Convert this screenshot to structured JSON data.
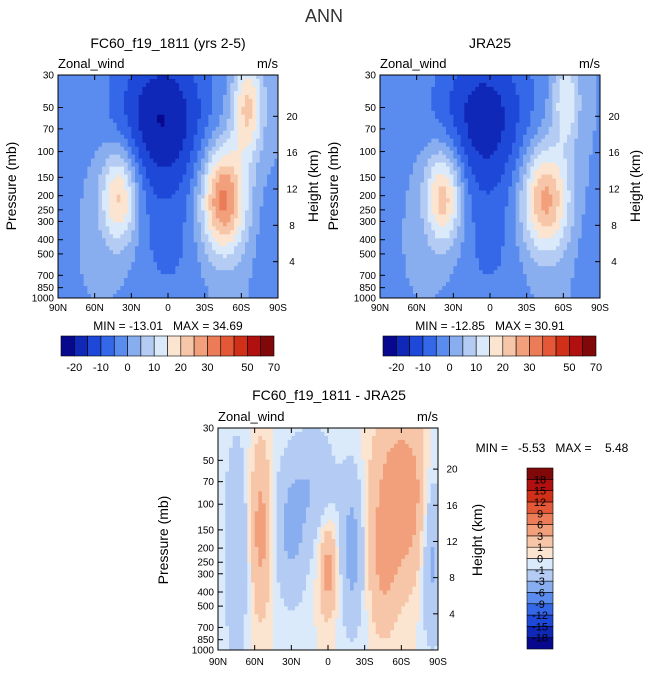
{
  "figure": {
    "title": "ANN"
  },
  "chart_data": [
    {
      "id": "model",
      "type": "heatmap",
      "title": "FC60_f19_1811 (yrs 2-5)",
      "left_label": "Zonal_wind",
      "right_label": "m/s",
      "ylabel": "Pressure (mb)",
      "ylabel_right": "Height (km)",
      "x_ticks": [
        "90N",
        "60N",
        "30N",
        "0",
        "30S",
        "60S",
        "90S"
      ],
      "x_values": [
        90,
        60,
        30,
        0,
        -30,
        -60,
        -90
      ],
      "y_ticks": [
        "30",
        "50",
        "70",
        "100",
        "150",
        "200",
        "250",
        "300",
        "400",
        "500",
        "700",
        "850",
        "1000"
      ],
      "y_values": [
        30,
        50,
        70,
        100,
        150,
        200,
        250,
        300,
        400,
        500,
        700,
        850,
        1000
      ],
      "height_ticks": [
        "4",
        "8",
        "12",
        "16",
        "20"
      ],
      "height_values": [
        4,
        8,
        12,
        16,
        20
      ],
      "ylim": [
        30,
        1000
      ],
      "stats_text": "MIN = -13.01   MAX = 34.69",
      "min": -13.01,
      "max": 34.69,
      "features": [
        {
          "lat": 40,
          "p": 200,
          "amp": 24,
          "sx": 11,
          "sy": 0.55,
          "pt": 1.8
        },
        {
          "lat": -45,
          "p": 210,
          "amp": 33,
          "sx": 13,
          "sy": 0.6,
          "pt": 1.8
        },
        {
          "lat": -65,
          "p": 50,
          "amp": 22,
          "sx": 9,
          "sy": 0.55,
          "pt": 1.8
        },
        {
          "lat": 5,
          "p": 60,
          "amp": -20,
          "sx": 28,
          "sy": 0.9,
          "pt": 1.8
        },
        {
          "lat": 0,
          "p": 500,
          "amp": -5,
          "sx": 20,
          "sy": 0.8,
          "pt": 1.8
        },
        {
          "lat": -80,
          "p": 500,
          "amp": -3,
          "sx": 8,
          "sy": 0.8,
          "pt": 1.8
        }
      ],
      "colorbar": {
        "levels": [
          -20,
          -15,
          -10,
          -5,
          0,
          5,
          10,
          15,
          20,
          25,
          30,
          35,
          40,
          50,
          60,
          70
        ],
        "labels": [
          "-20",
          "-10",
          "0",
          "10",
          "20",
          "30",
          "50",
          "70"
        ],
        "label_levels": [
          -20,
          -10,
          0,
          10,
          20,
          30,
          50,
          70
        ]
      }
    },
    {
      "id": "obs",
      "type": "heatmap",
      "title": "JRA25",
      "left_label": "Zonal_wind",
      "right_label": "m/s",
      "ylabel": "Pressure (mb)",
      "ylabel_right": "Height (km)",
      "x_ticks": [
        "90N",
        "60N",
        "30N",
        "0",
        "30S",
        "60S",
        "90S"
      ],
      "x_values": [
        90,
        60,
        30,
        0,
        -30,
        -60,
        -90
      ],
      "y_ticks": [
        "30",
        "50",
        "70",
        "100",
        "150",
        "200",
        "250",
        "300",
        "400",
        "500",
        "700",
        "850",
        "1000"
      ],
      "y_values": [
        30,
        50,
        70,
        100,
        150,
        200,
        250,
        300,
        400,
        500,
        700,
        850,
        1000
      ],
      "height_ticks": [
        "4",
        "8",
        "12",
        "16",
        "20"
      ],
      "height_values": [
        4,
        8,
        12,
        16,
        20
      ],
      "ylim": [
        30,
        1000
      ],
      "stats_text": "MIN = -12.85   MAX = 30.91",
      "min": -12.85,
      "max": 30.91,
      "features": [
        {
          "lat": 38,
          "p": 200,
          "amp": 26,
          "sx": 11,
          "sy": 0.55,
          "pt": 1.8
        },
        {
          "lat": -45,
          "p": 210,
          "amp": 28,
          "sx": 14,
          "sy": 0.6,
          "pt": 1.8
        },
        {
          "lat": -62,
          "p": 45,
          "amp": 15,
          "sx": 8,
          "sy": 0.5,
          "pt": 1.8
        },
        {
          "lat": 5,
          "p": 60,
          "amp": -18,
          "sx": 28,
          "sy": 0.9,
          "pt": 1.8
        },
        {
          "lat": 0,
          "p": 500,
          "amp": -5,
          "sx": 20,
          "sy": 0.8,
          "pt": 1.8
        },
        {
          "lat": -80,
          "p": 500,
          "amp": -3,
          "sx": 8,
          "sy": 0.8,
          "pt": 1.8
        }
      ],
      "colorbar": {
        "levels": [
          -20,
          -15,
          -10,
          -5,
          0,
          5,
          10,
          15,
          20,
          25,
          30,
          35,
          40,
          50,
          60,
          70
        ],
        "labels": [
          "-20",
          "-10",
          "0",
          "10",
          "20",
          "30",
          "50",
          "70"
        ],
        "label_levels": [
          -20,
          -10,
          0,
          10,
          20,
          30,
          50,
          70
        ]
      }
    },
    {
      "id": "diff",
      "type": "heatmap",
      "title": "FC60_f19_1811 - JRA25",
      "left_label": "Zonal_wind",
      "right_label": "m/s",
      "ylabel": "Pressure (mb)",
      "ylabel_right": "Height (km)",
      "x_ticks": [
        "90N",
        "60N",
        "30N",
        "0",
        "30S",
        "60S",
        "90S"
      ],
      "x_values": [
        90,
        60,
        30,
        0,
        -30,
        -60,
        -90
      ],
      "y_ticks": [
        "30",
        "50",
        "70",
        "100",
        "150",
        "200",
        "250",
        "300",
        "400",
        "500",
        "700",
        "850",
        "1000"
      ],
      "y_values": [
        30,
        50,
        70,
        100,
        150,
        200,
        250,
        300,
        400,
        500,
        700,
        850,
        1000
      ],
      "height_ticks": [
        "4",
        "8",
        "12",
        "16",
        "20"
      ],
      "height_values": [
        4,
        8,
        12,
        16,
        20
      ],
      "ylim": [
        30,
        1000
      ],
      "stats_text": "MIN =   -5.53   MAX =    5.48",
      "min": -5.53,
      "max": 5.48,
      "features": [
        {
          "lat": -60,
          "p": 90,
          "amp": 5,
          "sx": 16,
          "sy": 0.9,
          "pt": 2.2
        },
        {
          "lat": -45,
          "p": 300,
          "amp": 2.5,
          "sx": 8,
          "sy": 0.7,
          "pt": 2.2
        },
        {
          "lat": 55,
          "p": 150,
          "amp": 4,
          "sx": 6,
          "sy": 0.9,
          "pt": 2.2
        },
        {
          "lat": 0,
          "p": 280,
          "amp": 4,
          "sx": 5,
          "sy": 0.5,
          "pt": 2.2
        },
        {
          "lat": 75,
          "p": 200,
          "amp": -3,
          "sx": 7,
          "sy": 1.2,
          "pt": 2.2
        },
        {
          "lat": 30,
          "p": 150,
          "amp": -3.5,
          "sx": 10,
          "sy": 0.8,
          "pt": 2.2
        },
        {
          "lat": 10,
          "p": 70,
          "amp": -2.5,
          "sx": 12,
          "sy": 0.6,
          "pt": 2.2
        },
        {
          "lat": -20,
          "p": 200,
          "amp": -4,
          "sx": 7,
          "sy": 0.9,
          "pt": 2.2
        },
        {
          "lat": -85,
          "p": 200,
          "amp": -4,
          "sx": 6,
          "sy": 1.0,
          "pt": 2.2
        }
      ],
      "colorbar": {
        "levels": [
          -18,
          -15,
          -12,
          -9,
          -6,
          -3,
          -1,
          0,
          1,
          3,
          6,
          9,
          12,
          15,
          18
        ],
        "labels": [
          "-18",
          "-15",
          "-12",
          "-9",
          "-6",
          "-3",
          "-1",
          "0",
          "1",
          "3",
          "6",
          "9",
          "12",
          "15",
          "18"
        ],
        "label_levels": [
          -18,
          -15,
          -12,
          -9,
          -6,
          -3,
          -1,
          0,
          1,
          3,
          6,
          9,
          12,
          15,
          18
        ]
      }
    }
  ],
  "palettes": {
    "full": [
      "#08088f",
      "#1028b8",
      "#1e48d8",
      "#3468e8",
      "#5a8cf0",
      "#88aef0",
      "#b4ccf4",
      "#daeafa",
      "#fbe4d0",
      "#f7c6a8",
      "#f2a07c",
      "#ec7c58",
      "#e45838",
      "#d03018",
      "#b01010",
      "#800808"
    ],
    "diff": [
      "#08088f",
      "#1028b8",
      "#1e48d8",
      "#3468e8",
      "#5a8cf0",
      "#88aef0",
      "#b4ccf4",
      "#daeafa",
      "#fbe4d0",
      "#f7c6a8",
      "#f2a07c",
      "#ec7c58",
      "#e45838",
      "#d03018",
      "#b01010",
      "#800808"
    ]
  }
}
